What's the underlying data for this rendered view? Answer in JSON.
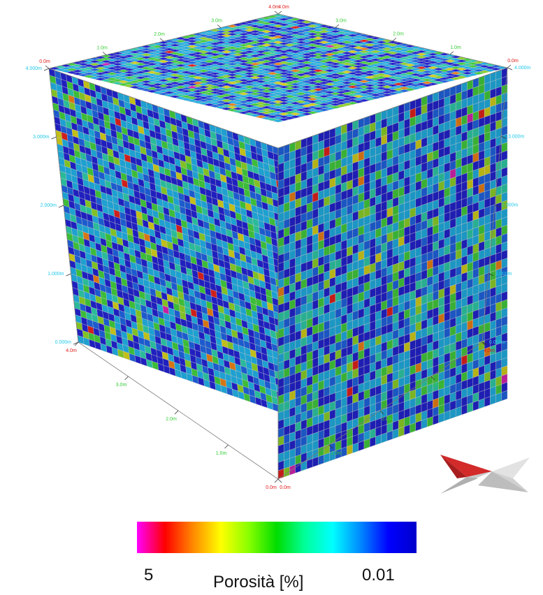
{
  "viewer": {
    "colors": {
      "grid_line": "#c8c8c8",
      "axis_m": "#33cc33",
      "axis_m_end": "#e01818",
      "axis_height": "#22c8e8"
    },
    "scale_palette": [
      "#2121c6",
      "#1e5fd6",
      "#1fa7d9",
      "#2cc2a0",
      "#3fc43a",
      "#86c826",
      "#c9c61a",
      "#e07a16",
      "#d8201c",
      "#cc22aa"
    ],
    "cube": {
      "cells_per_edge": 40,
      "seed": 7
    },
    "axes": {
      "top_left_edge": [
        "0.0m",
        "1.0m",
        "2.0m",
        "3.0m",
        "4.0m"
      ],
      "top_right_edge": [
        "4.0m",
        "3.0m",
        "2.0m",
        "1.0m",
        "0.0m"
      ],
      "bottom_left_edge": [
        "4.0m",
        "3.0m",
        "2.0m",
        "1.0m",
        "0.0m"
      ],
      "bottom_right_edge": [
        "0.0m",
        "1.0m",
        "2.0m",
        "3.0m",
        "4.0m"
      ],
      "left_height": [
        "0.000m",
        "1.000m",
        "2.000m",
        "3.000m",
        "4.000m"
      ],
      "right_height": [
        "0.000m",
        "1.000m",
        "2.000m",
        "3.000m",
        "4.000m"
      ]
    }
  },
  "legend": {
    "title": "Porosità [%]",
    "max_label": "5",
    "min_label": "0.01",
    "gradient": [
      "#ff00ff",
      "#ff0000",
      "#ff8800",
      "#ffff00",
      "#88ff00",
      "#00dd00",
      "#00ff99",
      "#00ffff",
      "#0088ff",
      "#0000ff",
      "#0000cc"
    ]
  }
}
